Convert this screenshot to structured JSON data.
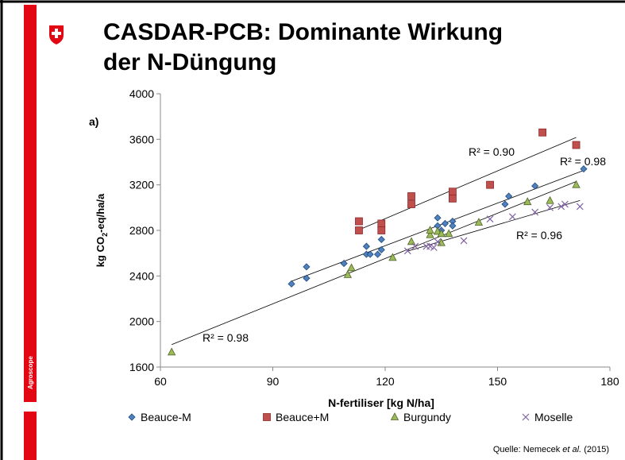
{
  "slide": {
    "title_lines": [
      "CASDAR-PCB: Dominante Wirkung",
      "der N-Düngung"
    ],
    "brand": "Agroscope",
    "source": [
      "Quelle: Nemecek ",
      "et al.",
      " (2015)"
    ]
  },
  "chart_data": {
    "type": "scatter",
    "panel_label": "a)",
    "x_label": "N-fertiliser [kg N/ha]",
    "y_label": [
      "kg CO",
      "2",
      "-eq/ha/a"
    ],
    "xlim": [
      60,
      180
    ],
    "xticks": [
      60,
      90,
      120,
      150,
      180
    ],
    "ylim": [
      1600,
      4000
    ],
    "yticks": [
      1600,
      2000,
      2400,
      2800,
      3200,
      3600,
      4000
    ],
    "series": [
      {
        "name": "Beauce-M",
        "color": "#4f81bd",
        "marker": "diamond",
        "x": [
          95,
          99,
          99,
          109,
          115,
          115,
          116,
          118,
          119,
          119,
          134,
          134,
          135,
          136,
          138,
          138,
          152,
          153,
          160,
          173
        ],
        "values": [
          2330,
          2380,
          2480,
          2510,
          2590,
          2660,
          2590,
          2590,
          2630,
          2720,
          2910,
          2840,
          2800,
          2860,
          2880,
          2840,
          3030,
          3100,
          3190,
          3340
        ]
      },
      {
        "name": "Beauce+M",
        "color": "#c0504d",
        "marker": "square",
        "x": [
          113,
          113,
          119,
          119,
          127,
          127,
          138,
          138,
          148,
          162,
          171
        ],
        "values": [
          2880,
          2800,
          2860,
          2800,
          3100,
          3030,
          3140,
          3080,
          3200,
          3660,
          3550
        ]
      },
      {
        "name": "Burgundy",
        "color": "#9bbb59",
        "marker": "triangle",
        "x": [
          63,
          110,
          111,
          122,
          127,
          132,
          132,
          134,
          135,
          135,
          137,
          145,
          158,
          164,
          171
        ],
        "values": [
          1730,
          2410,
          2470,
          2560,
          2700,
          2760,
          2800,
          2790,
          2770,
          2690,
          2770,
          2870,
          3050,
          3060,
          3200
        ]
      },
      {
        "name": "Moselle",
        "color": "#8064a2",
        "marker": "cross",
        "x": [
          126,
          128,
          131,
          132,
          133,
          134,
          141,
          148,
          154,
          160,
          164,
          167,
          168,
          172
        ],
        "values": [
          2620,
          2660,
          2660,
          2660,
          2650,
          2700,
          2710,
          2900,
          2920,
          2960,
          3000,
          3010,
          3030,
          3010
        ]
      }
    ],
    "annotations": [
      "R² = 0.90",
      "R² = 0.98",
      "R² = 0.96",
      "R² = 0.98"
    ]
  }
}
